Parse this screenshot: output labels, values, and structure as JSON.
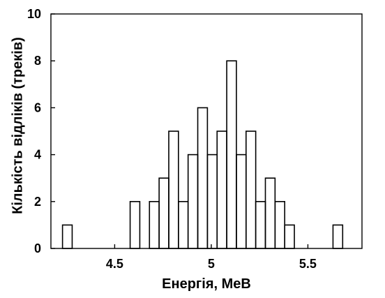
{
  "chart_data": {
    "type": "bar",
    "title": "",
    "xlabel": "Енергія, МеВ",
    "ylabel": "Кількість відліків (треків)",
    "xlim": [
      4.17,
      5.78
    ],
    "ylim": [
      0,
      10
    ],
    "bin_width": 0.05,
    "x_ticks": [
      {
        "value": 4.5,
        "label": "4.5"
      },
      {
        "value": 5.0,
        "label": "5"
      },
      {
        "value": 5.5,
        "label": "5.5"
      }
    ],
    "y_ticks": [
      {
        "value": 0,
        "label": "0"
      },
      {
        "value": 2,
        "label": "2"
      },
      {
        "value": 4,
        "label": "4"
      },
      {
        "value": 6,
        "label": "6"
      },
      {
        "value": 8,
        "label": "8"
      },
      {
        "value": 10,
        "label": "10"
      }
    ],
    "bins": [
      {
        "start": 4.23,
        "count": 1
      },
      {
        "start": 4.28,
        "count": 0
      },
      {
        "start": 4.33,
        "count": 0
      },
      {
        "start": 4.38,
        "count": 0
      },
      {
        "start": 4.43,
        "count": 0
      },
      {
        "start": 4.48,
        "count": 0
      },
      {
        "start": 4.53,
        "count": 0
      },
      {
        "start": 4.58,
        "count": 2
      },
      {
        "start": 4.63,
        "count": 0
      },
      {
        "start": 4.68,
        "count": 2
      },
      {
        "start": 4.73,
        "count": 3
      },
      {
        "start": 4.78,
        "count": 5
      },
      {
        "start": 4.83,
        "count": 2
      },
      {
        "start": 4.88,
        "count": 4
      },
      {
        "start": 4.93,
        "count": 6
      },
      {
        "start": 4.98,
        "count": 4
      },
      {
        "start": 5.03,
        "count": 5
      },
      {
        "start": 5.08,
        "count": 8
      },
      {
        "start": 5.13,
        "count": 4
      },
      {
        "start": 5.18,
        "count": 5
      },
      {
        "start": 5.23,
        "count": 2
      },
      {
        "start": 5.28,
        "count": 3
      },
      {
        "start": 5.33,
        "count": 2
      },
      {
        "start": 5.38,
        "count": 1
      },
      {
        "start": 5.43,
        "count": 0
      },
      {
        "start": 5.48,
        "count": 0
      },
      {
        "start": 5.53,
        "count": 0
      },
      {
        "start": 5.58,
        "count": 0
      },
      {
        "start": 5.63,
        "count": 1
      }
    ],
    "grid": false,
    "legend": "none"
  }
}
